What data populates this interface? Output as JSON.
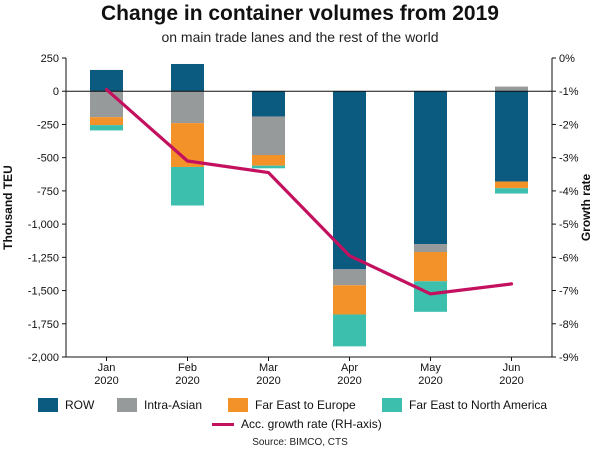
{
  "chart_data": {
    "type": "bar",
    "title": "Change in container volumes from 2019",
    "subtitle": "on main trade lanes and the rest of the world",
    "ylabel": "Thousand TEU",
    "y2label": "Growth rate",
    "ylim": [
      -2000,
      250
    ],
    "y2lim": [
      -9,
      0
    ],
    "yticks": [
      "250",
      "0",
      "-250",
      "-500",
      "-750",
      "-1,000",
      "-1,250",
      "-1,500",
      "-1,750",
      "-2,000"
    ],
    "y2ticks": [
      "0%",
      "-1%",
      "-2%",
      "-3%",
      "-4%",
      "-5%",
      "-6%",
      "-7%",
      "-8%",
      "-9%"
    ],
    "categories": [
      {
        "month": "Jan",
        "year": "2020"
      },
      {
        "month": "Feb",
        "year": "2020"
      },
      {
        "month": "Mar",
        "year": "2020"
      },
      {
        "month": "Apr",
        "year": "2020"
      },
      {
        "month": "May",
        "year": "2020"
      },
      {
        "month": "Jun",
        "year": "2020"
      }
    ],
    "stacked": true,
    "series": [
      {
        "name": "ROW",
        "color": "#0b5a80",
        "values": [
          160,
          205,
          -190,
          -1340,
          -1150,
          -680
        ]
      },
      {
        "name": "Intra-Asian",
        "color": "#979a9a",
        "values": [
          -195,
          -240,
          -290,
          -120,
          -60,
          35
        ]
      },
      {
        "name": "Far East to Europe",
        "color": "#f39229",
        "values": [
          -60,
          -330,
          -80,
          -220,
          -220,
          -50
        ]
      },
      {
        "name": "Far East to North America",
        "color": "#3dbfae",
        "values": [
          -40,
          -290,
          -20,
          -240,
          -230,
          -40
        ]
      }
    ],
    "line_series": {
      "name": "Acc. growth rate (RH-axis)",
      "color": "#c3105f",
      "axis": "right",
      "values": [
        -0.95,
        -3.1,
        -3.45,
        -5.95,
        -7.1,
        -6.8
      ]
    },
    "grid": false,
    "legend_position": "bottom",
    "source": "Source: BIMCO, CTS"
  }
}
